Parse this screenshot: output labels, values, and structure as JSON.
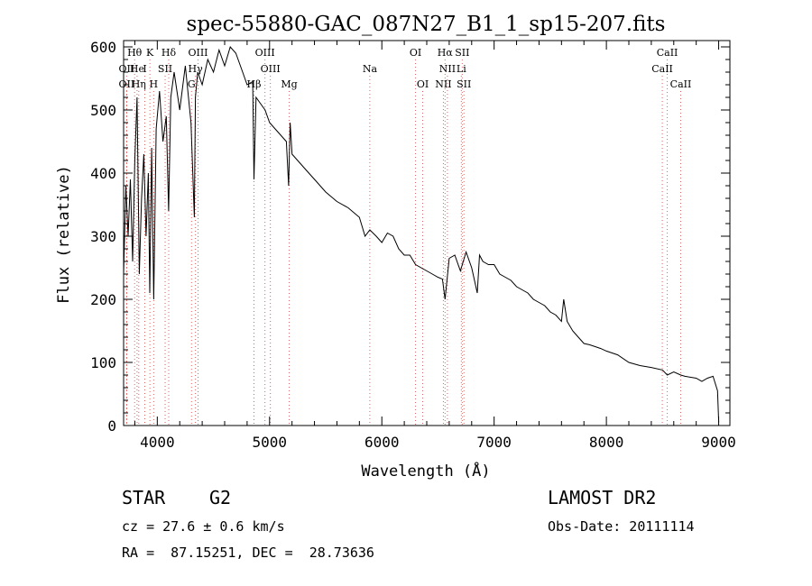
{
  "chart_data": {
    "type": "line",
    "title": "spec-55880-GAC_087N27_B1_1_sp15-207.fits",
    "xlabel": "Wavelength (Å)",
    "ylabel": "Flux (relative)",
    "xlim": [
      3700,
      9100
    ],
    "ylim": [
      0,
      610
    ],
    "x_ticks": [
      4000,
      5000,
      6000,
      7000,
      8000,
      9000
    ],
    "y_ticks": [
      0,
      100,
      200,
      300,
      400,
      500,
      600
    ],
    "grid": false,
    "series": [
      {
        "x": [
          3700,
          3720,
          3740,
          3760,
          3780,
          3800,
          3820,
          3840,
          3860,
          3880,
          3900,
          3920,
          3933,
          3950,
          3968,
          3990,
          4020,
          4050,
          4080,
          4101,
          4120,
          4150,
          4200,
          4250,
          4300,
          4330,
          4340,
          4360,
          4400,
          4450,
          4500,
          4550,
          4600,
          4650,
          4700,
          4750,
          4800,
          4850,
          4861,
          4880,
          4920,
          4960,
          5000,
          5050,
          5100,
          5150,
          5170,
          5183,
          5200,
          5250,
          5300,
          5350,
          5400,
          5500,
          5600,
          5700,
          5800,
          5850,
          5893,
          5950,
          6000,
          6050,
          6100,
          6150,
          6200,
          6250,
          6300,
          6350,
          6400,
          6450,
          6500,
          6540,
          6563,
          6600,
          6650,
          6700,
          6750,
          6800,
          6850,
          6870,
          6900,
          6950,
          7000,
          7050,
          7100,
          7150,
          7200,
          7250,
          7300,
          7350,
          7400,
          7450,
          7500,
          7550,
          7600,
          7620,
          7650,
          7700,
          7750,
          7800,
          7850,
          7900,
          7950,
          8000,
          8100,
          8200,
          8300,
          8400,
          8500,
          8542,
          8600,
          8662,
          8700,
          8800,
          8850,
          8900,
          8950,
          8990,
          9000
        ],
        "y": [
          240,
          380,
          300,
          390,
          260,
          420,
          520,
          240,
          360,
          430,
          300,
          400,
          210,
          440,
          200,
          470,
          530,
          450,
          490,
          340,
          520,
          560,
          500,
          570,
          480,
          330,
          520,
          560,
          540,
          580,
          560,
          595,
          570,
          600,
          590,
          565,
          540,
          545,
          390,
          520,
          510,
          500,
          480,
          470,
          460,
          450,
          380,
          480,
          430,
          420,
          410,
          400,
          390,
          370,
          355,
          345,
          330,
          300,
          310,
          300,
          290,
          305,
          300,
          280,
          270,
          270,
          255,
          250,
          245,
          240,
          235,
          232,
          200,
          265,
          270,
          245,
          275,
          250,
          210,
          270,
          260,
          255,
          255,
          240,
          235,
          230,
          220,
          215,
          210,
          200,
          195,
          190,
          180,
          175,
          165,
          200,
          165,
          150,
          140,
          130,
          128,
          125,
          122,
          118,
          112,
          100,
          95,
          92,
          88,
          80,
          85,
          80,
          78,
          75,
          70,
          75,
          78,
          55,
          5
        ]
      }
    ],
    "lines_marked": [
      {
        "label": "Hθ",
        "x": 3798,
        "row": 1
      },
      {
        "label": "K",
        "x": 3934,
        "row": 1
      },
      {
        "label": "Hδ",
        "x": 4102,
        "row": 1
      },
      {
        "label": "OIII",
        "x": 4363,
        "row": 1
      },
      {
        "label": "OIII",
        "x": 4959,
        "row": 1
      },
      {
        "label": "OI",
        "x": 6300,
        "row": 1
      },
      {
        "label": "Hα",
        "x": 6563,
        "row": 1
      },
      {
        "label": "SII",
        "x": 6716,
        "row": 1
      },
      {
        "label": "CaII",
        "x": 8542,
        "row": 1
      },
      {
        "label": "OII",
        "x": 3727,
        "row": 2
      },
      {
        "label": "He",
        "x": 3820,
        "row": 2
      },
      {
        "label": "I",
        "x": 3889,
        "row": 2
      },
      {
        "label": "SII",
        "x": 4070,
        "row": 2
      },
      {
        "label": "Hγ",
        "x": 4340,
        "row": 2
      },
      {
        "label": "OIII",
        "x": 5007,
        "row": 2
      },
      {
        "label": "Na",
        "x": 5893,
        "row": 2
      },
      {
        "label": "NII",
        "x": 6584,
        "row": 2
      },
      {
        "label": "Li",
        "x": 6708,
        "row": 2
      },
      {
        "label": "CaII",
        "x": 8498,
        "row": 2
      },
      {
        "label": "OII",
        "x": 3727,
        "row": 3
      },
      {
        "label": "Hη",
        "x": 3835,
        "row": 3
      },
      {
        "label": "H",
        "x": 3968,
        "row": 3
      },
      {
        "label": "G",
        "x": 4305,
        "row": 3
      },
      {
        "label": "Hβ",
        "x": 4861,
        "row": 3
      },
      {
        "label": "Mg",
        "x": 5175,
        "row": 3
      },
      {
        "label": "OI",
        "x": 6364,
        "row": 3
      },
      {
        "label": "NII",
        "x": 6548,
        "row": 3
      },
      {
        "label": "SII",
        "x": 6731,
        "row": 3
      },
      {
        "label": "CaII",
        "x": 8662,
        "row": 3
      }
    ]
  },
  "info": {
    "object_class": "STAR",
    "subclass": "G2",
    "survey": "LAMOST DR2",
    "redshift": "cz = 27.6 ± 0.6 km/s",
    "obs_date": "Obs-Date: 20111114",
    "coords": "RA =  87.15251, DEC =  28.73636"
  },
  "colors": {
    "line_marker": "#e06060",
    "spectrum": "#000000"
  }
}
